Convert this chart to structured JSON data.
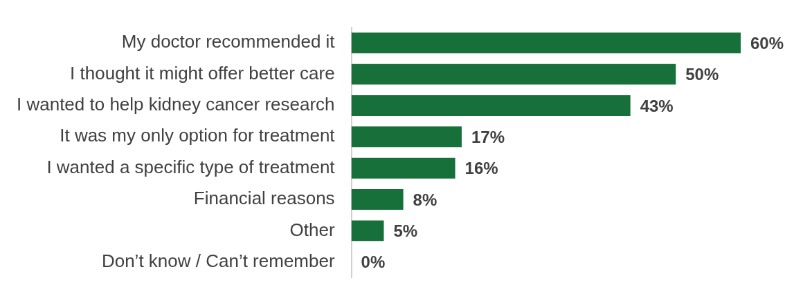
{
  "chart_data": {
    "type": "bar",
    "orientation": "horizontal",
    "categories": [
      "My doctor recommended it",
      "I thought it might offer better care",
      "I wanted to help kidney cancer research",
      "It was my only option for treatment",
      "I wanted a specific type of treatment",
      "Financial reasons",
      "Other",
      "Don’t know / Can’t remember"
    ],
    "values": [
      60,
      50,
      43,
      17,
      16,
      8,
      5,
      0
    ],
    "value_labels": [
      "60%",
      "50%",
      "43%",
      "17%",
      "16%",
      "8%",
      "5%",
      "0%"
    ],
    "color": "#17703a",
    "legend": false
  }
}
